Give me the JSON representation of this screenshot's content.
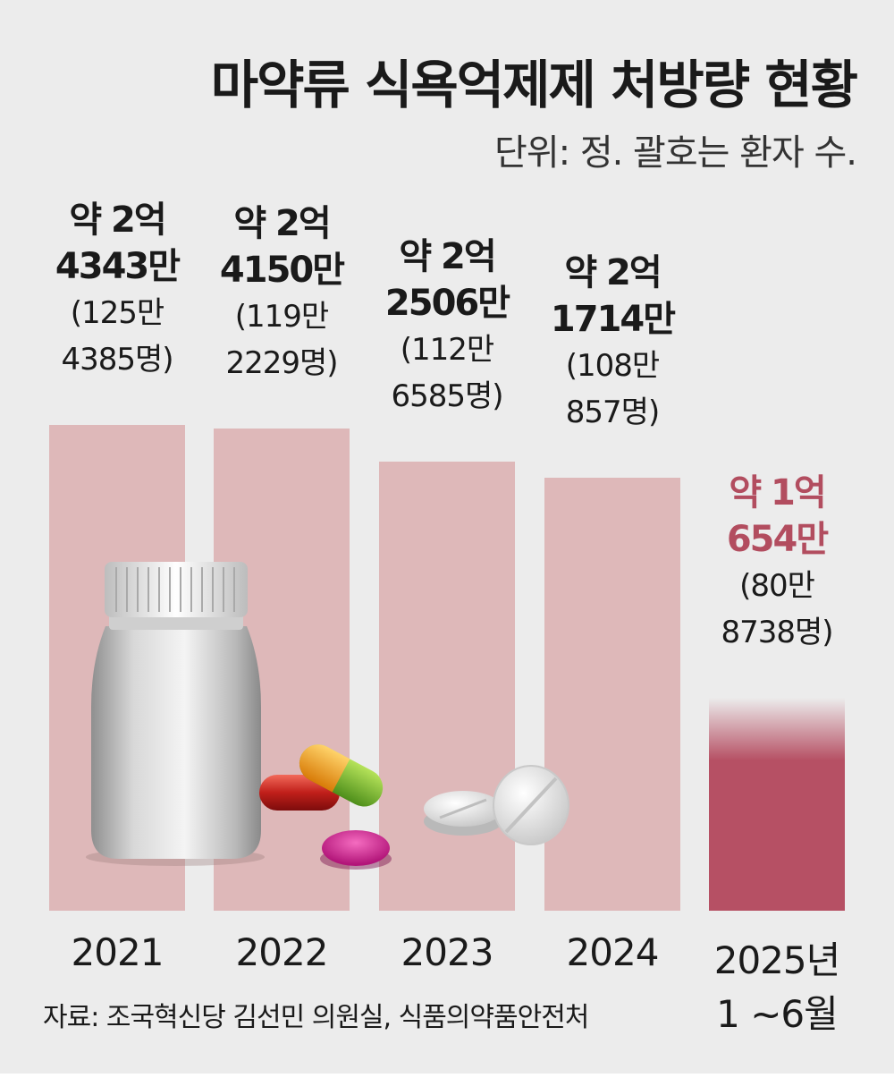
{
  "title": "마약류 식욕억제제 처방량 현황",
  "subtitle": "단위: 정. 괄호는 환자 수.",
  "source": "자료: 조국혁신당 김선민 의원실, 식품의약품안전처",
  "colors": {
    "bar": "#deb8b9",
    "highlight_bar": "#b65064",
    "highlight_text": "#b24d5f",
    "background": "#ececec"
  },
  "labels": [
    {
      "l1": "약 2억",
      "l2": "4343만",
      "p1": "(125만",
      "p2": "4385명)",
      "year": "2021",
      "year2": ""
    },
    {
      "l1": "약 2억",
      "l2": "4150만",
      "p1": "(119만",
      "p2": "2229명)",
      "year": "2022",
      "year2": ""
    },
    {
      "l1": "약 2억",
      "l2": "2506만",
      "p1": "(112만",
      "p2": "6585명)",
      "year": "2023",
      "year2": ""
    },
    {
      "l1": "약 2억",
      "l2": "1714만",
      "p1": "(108만",
      "p2": "857명)",
      "year": "2024",
      "year2": ""
    },
    {
      "l1": "약 1억",
      "l2": "654만",
      "p1": "(80만",
      "p2": "8738명)",
      "year": "2025년",
      "year2": "1 ~6월"
    }
  ],
  "chart_data": {
    "type": "bar",
    "title": "마약류 식욕억제제 처방량 현황",
    "subtitle": "단위: 정. 괄호는 환자 수.",
    "categories": [
      "2021",
      "2022",
      "2023",
      "2024",
      "2025년 1~6월"
    ],
    "series": [
      {
        "name": "처방량",
        "values": [
          243430000,
          241500000,
          225060000,
          217140000,
          106540000
        ]
      }
    ],
    "patients": [
      1254385,
      1192229,
      1126585,
      1080857,
      808738
    ],
    "highlight_index": 4,
    "grid": false,
    "ylim": [
      0,
      260000000
    ]
  }
}
